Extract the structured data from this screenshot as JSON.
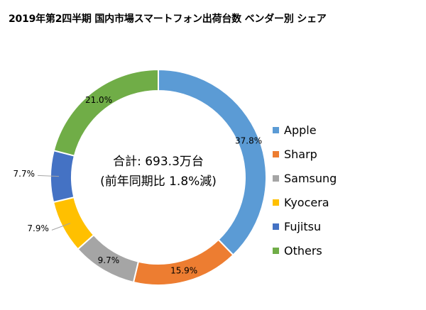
{
  "chart_data": {
    "type": "pie",
    "title": "2019年第2四半期 国内市場スマートフォン出荷台数 ベンダー別 シェア",
    "center_text": [
      "合計: 693.3万台",
      "(前年同期比 1.8%減)"
    ],
    "categories": [
      "Apple",
      "Sharp",
      "Samsung",
      "Kyocera",
      "Fujitsu",
      "Others"
    ],
    "values": [
      37.8,
      15.9,
      9.7,
      7.9,
      7.7,
      21.0
    ],
    "data_labels": [
      "37.8%",
      "15.9%",
      "9.7%",
      "7.9%",
      "7.7%",
      "21.0%"
    ],
    "colors": [
      "#5b9bd5",
      "#ed7d31",
      "#a5a5a5",
      "#ffc000",
      "#4472c4",
      "#70ad47"
    ],
    "donut": true,
    "legend_position": "right",
    "xlabel": "",
    "ylabel": ""
  }
}
